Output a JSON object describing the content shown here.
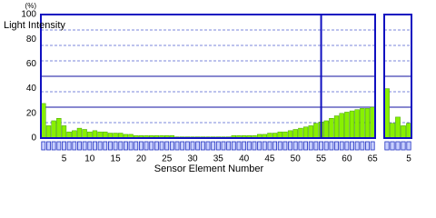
{
  "chart_data": [
    {
      "type": "bar",
      "y_unit": "(%)",
      "ylabel": "Light Intensity",
      "xlabel": "Sensor Element Number",
      "categories": [
        null,
        null,
        null,
        null,
        5,
        null,
        null,
        null,
        null,
        10,
        null,
        null,
        null,
        null,
        15,
        null,
        null,
        null,
        null,
        20,
        null,
        null,
        null,
        null,
        25,
        null,
        null,
        null,
        null,
        30,
        null,
        null,
        null,
        null,
        35,
        null,
        null,
        null,
        null,
        40,
        null,
        null,
        null,
        null,
        45,
        null,
        null,
        null,
        null,
        50,
        null,
        null,
        null,
        null,
        55,
        null,
        null,
        null,
        null,
        60,
        null,
        null,
        null,
        null,
        65
      ],
      "values": [
        28,
        10,
        14,
        16,
        10,
        5,
        6,
        8,
        7,
        5,
        6,
        5,
        5,
        4,
        4,
        4,
        3,
        3,
        2,
        2,
        2,
        2,
        2,
        2,
        2,
        2,
        1,
        1,
        1,
        1,
        1,
        1,
        1,
        1,
        1,
        1,
        1,
        2,
        2,
        2,
        2,
        2,
        3,
        3,
        4,
        4,
        5,
        5,
        6,
        7,
        8,
        9,
        10,
        12,
        13,
        14,
        16,
        18,
        20,
        21,
        22,
        23,
        24,
        24,
        25
      ],
      "color": "#88f000",
      "ylim": [
        0,
        100
      ],
      "yticks": [
        0,
        20,
        40,
        60,
        80,
        100
      ],
      "grid_dashed": [
        12.5,
        37.5,
        62.5,
        75,
        87.5
      ],
      "grid_solid": [
        25,
        50
      ],
      "highlight_x": 55
    },
    {
      "type": "bar",
      "categories": [
        null,
        null,
        null,
        null,
        5
      ],
      "values": [
        40,
        12,
        17,
        10,
        12
      ],
      "color": "#88f000",
      "ylim": [
        0,
        100
      ],
      "grid_dashed": [
        12.5,
        37.5,
        62.5,
        75,
        87.5
      ],
      "grid_solid": [
        25,
        50
      ]
    }
  ]
}
